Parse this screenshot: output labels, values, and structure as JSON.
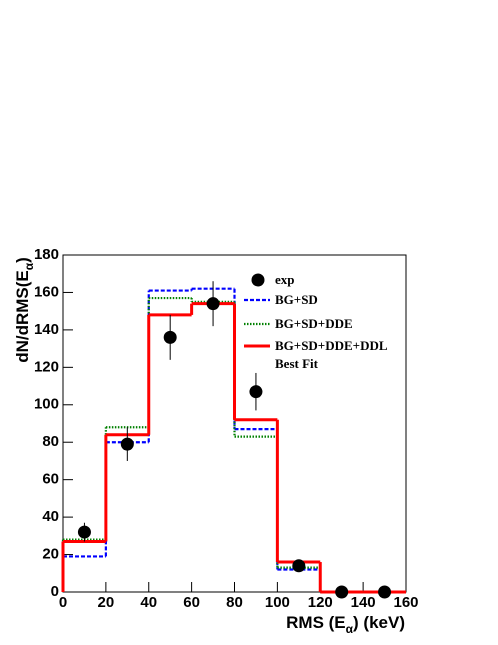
{
  "chart_data": {
    "type": "histogram",
    "xlabel": {
      "text": "RMS (E",
      "sub": "α",
      "rest": ") (keV)"
    },
    "ylabel": {
      "text": "dN/dRMS(E",
      "sub": "α",
      "rest": ")"
    },
    "bins": [
      0,
      20,
      40,
      60,
      80,
      100,
      120,
      140,
      160
    ],
    "series": [
      {
        "name": "BG+SD",
        "color": "#0000ff",
        "dash": "dashed",
        "values": [
          19,
          80,
          161,
          162,
          87,
          12,
          0,
          0
        ]
      },
      {
        "name": "BG+SD+DDE",
        "color": "#008000",
        "dash": "dotted",
        "values": [
          28,
          88,
          157,
          155,
          83,
          13,
          0,
          0
        ]
      },
      {
        "name": "BG+SD+DDE+DDL",
        "note": "Best Fit",
        "color": "#ff0000",
        "dash": "solid",
        "values": [
          27,
          84,
          148,
          154,
          92,
          16,
          0,
          0
        ]
      }
    ],
    "points": {
      "name": "exp",
      "color": "#000000",
      "x": [
        10,
        30,
        50,
        70,
        90,
        110,
        130,
        150
      ],
      "values": [
        32,
        79,
        136,
        154,
        107,
        14,
        0,
        0
      ],
      "errors": [
        5,
        9,
        12,
        12,
        10,
        3,
        0,
        0
      ]
    },
    "xlim": [
      0,
      160
    ],
    "xticks": [
      0,
      20,
      40,
      60,
      80,
      100,
      120,
      140,
      160
    ],
    "ylim": [
      0,
      180
    ],
    "yticks": [
      0,
      20,
      40,
      60,
      80,
      100,
      120,
      140,
      160,
      180
    ]
  }
}
